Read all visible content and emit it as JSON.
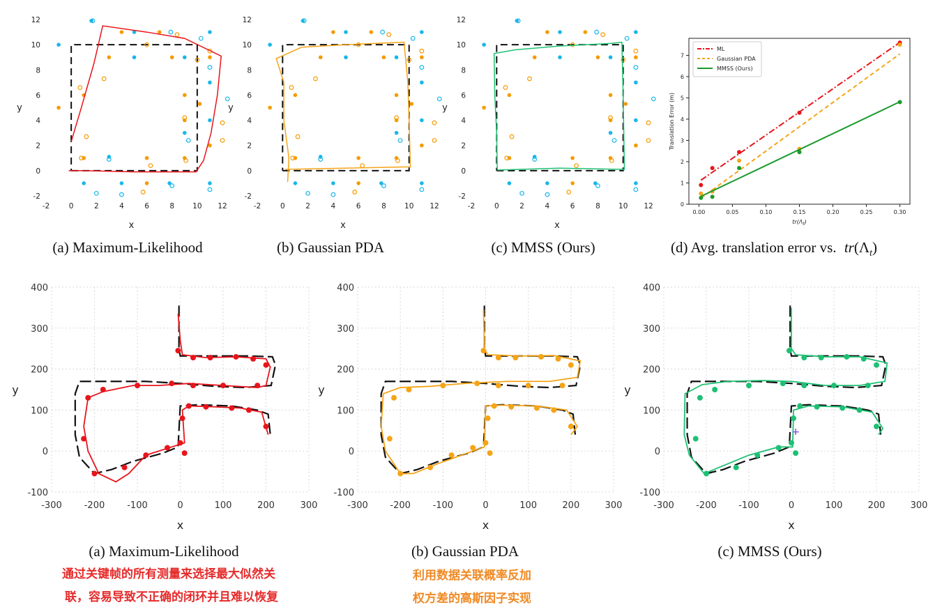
{
  "colors": {
    "ml": "#e8141b",
    "pda": "#f5a417",
    "mmss": "#1ec074",
    "mmss_line": "#1a9a2c",
    "landmark_blue": "#19b7e9",
    "landmark_orange": "#f59b00",
    "ground_truth": "#111111",
    "annotation_red": "#e62a2a",
    "annotation_orange": "#f08a24",
    "purple_marker": "#8a5cf6"
  },
  "captions": {
    "top_a": "(a) Maximum-Likelihood",
    "top_b": "(b) Gaussian PDA",
    "top_c": "(c) MMSS (Ours)",
    "top_d_prefix": "(d) Avg. translation error vs.",
    "top_d_math_tr": "tr",
    "top_d_math_open": "(Λ",
    "top_d_math_sub": "t",
    "top_d_math_close": ")",
    "bottom_a": "(a) Maximum-Likelihood",
    "bottom_b": "(b) Gaussian PDA",
    "bottom_c": "(c) MMSS (Ours)"
  },
  "annotations": {
    "red_line1": "通过关键帧的所有测量来选择最大似然关",
    "red_line2": "联，容易导致不正确的闭环并且难以恢复",
    "orange_line1": "利用数据关联概率反加",
    "orange_line2": "权方差的高斯因子实现"
  },
  "chart_data": [
    {
      "id": "top_a",
      "type": "scatter",
      "title": "",
      "xlabel": "x",
      "ylabel": "y",
      "xlim": [
        -2,
        12
      ],
      "ylim": [
        -2,
        12
      ],
      "x_ticks": [
        "-2",
        "0",
        "2",
        "4",
        "6",
        "8",
        "10",
        "12"
      ],
      "y_ticks": [
        "-2",
        "0",
        "2",
        "4",
        "6",
        "8",
        "10",
        "12"
      ],
      "ground_truth_square": [
        [
          0,
          0
        ],
        [
          10,
          0
        ],
        [
          10,
          10
        ],
        [
          0,
          10
        ],
        [
          0,
          0
        ]
      ],
      "estimate_color": "ml",
      "estimate": [
        [
          0,
          2.3
        ],
        [
          0.8,
          5
        ],
        [
          1.8,
          8.5
        ],
        [
          2.5,
          11.5
        ],
        [
          6,
          11
        ],
        [
          9,
          10.5
        ],
        [
          11.9,
          9.1
        ],
        [
          11.6,
          6
        ],
        [
          11.1,
          3
        ],
        [
          10.5,
          0.8
        ],
        [
          9.9,
          -0.1
        ],
        [
          5,
          -0.1
        ],
        [
          1,
          0
        ],
        [
          -0.2,
          0
        ]
      ]
    },
    {
      "id": "top_b",
      "type": "scatter",
      "title": "",
      "xlabel": "x",
      "ylabel": "y",
      "xlim": [
        -2,
        12
      ],
      "ylim": [
        -2,
        12
      ],
      "x_ticks": [
        "-2",
        "0",
        "2",
        "4",
        "6",
        "8",
        "10",
        "12"
      ],
      "y_ticks": [
        "-2",
        "0",
        "2",
        "4",
        "6",
        "8",
        "10",
        "12"
      ],
      "ground_truth_square": [
        [
          0,
          0
        ],
        [
          10,
          0
        ],
        [
          10,
          10
        ],
        [
          0,
          10
        ],
        [
          0,
          0
        ]
      ],
      "estimate_color": "pda",
      "estimate": [
        [
          0.4,
          -0.9
        ],
        [
          0.5,
          1
        ],
        [
          0.1,
          4
        ],
        [
          0.1,
          7
        ],
        [
          -0.5,
          8.9
        ],
        [
          1.5,
          9.8
        ],
        [
          5,
          10
        ],
        [
          9.6,
          10.2
        ],
        [
          9.9,
          7
        ],
        [
          10,
          4
        ],
        [
          10.1,
          0.3
        ],
        [
          5,
          0.2
        ],
        [
          0.2,
          0.1
        ]
      ]
    },
    {
      "id": "top_c",
      "type": "scatter",
      "title": "",
      "xlabel": "x",
      "ylabel": "y",
      "xlim": [
        -2,
        12
      ],
      "ylim": [
        -2,
        12
      ],
      "x_ticks": [
        "-2",
        "0",
        "2",
        "4",
        "6",
        "8",
        "10",
        "12"
      ],
      "y_ticks": [
        "-2",
        "0",
        "2",
        "4",
        "6",
        "8",
        "10",
        "12"
      ],
      "ground_truth_square": [
        [
          0,
          0
        ],
        [
          10,
          0
        ],
        [
          10,
          10
        ],
        [
          0,
          10
        ],
        [
          0,
          0
        ]
      ],
      "estimate_color": "mmss",
      "estimate": [
        [
          0.05,
          0.1
        ],
        [
          0,
          3
        ],
        [
          -0.15,
          6
        ],
        [
          -0.2,
          9.3
        ],
        [
          1.5,
          9.6
        ],
        [
          5,
          9.9
        ],
        [
          9,
          10.1
        ],
        [
          9.9,
          10.2
        ],
        [
          10,
          6
        ],
        [
          10.1,
          0.1
        ],
        [
          5,
          0.2
        ],
        [
          0.05,
          0.05
        ]
      ]
    },
    {
      "id": "top_d",
      "type": "line",
      "title": "",
      "xlabel": "tr(Λt)",
      "ylabel": "Translation Error (m)",
      "xlim": [
        -0.015,
        0.315
      ],
      "ylim": [
        0,
        7.8
      ],
      "x_ticks": [
        0.0,
        0.05,
        0.1,
        0.15,
        0.2,
        0.25,
        0.3
      ],
      "x_tick_labels": [
        "0.00",
        "0.05",
        "0.10",
        "0.15",
        "0.20",
        "0.25",
        "0.30"
      ],
      "y_ticks": [
        0,
        1,
        2,
        3,
        4,
        5,
        6,
        7
      ],
      "y_tick_labels": [
        "0",
        "1",
        "2",
        "3",
        "4",
        "5",
        "6",
        "7"
      ],
      "legend_position": "top-left",
      "series": [
        {
          "name": "ML",
          "color_key": "ml",
          "dash": "dashdot",
          "x": [
            0.003,
            0.02,
            0.06,
            0.15,
            0.3
          ],
          "y": [
            0.9,
            1.7,
            2.45,
            4.3,
            7.6
          ]
        },
        {
          "name": "Gaussian PDA",
          "color_key": "pda",
          "dash": "dashed",
          "x": [
            0.003,
            0.02,
            0.06,
            0.15,
            0.3
          ],
          "y": [
            0.5,
            0.6,
            2.05,
            2.6,
            7.5
          ]
        },
        {
          "name": "MMSS (Ours)",
          "color_key": "mmss_line",
          "dash": "solid",
          "x": [
            0.003,
            0.02,
            0.06,
            0.15,
            0.3
          ],
          "y": [
            0.3,
            0.35,
            1.7,
            2.45,
            4.8
          ]
        }
      ]
    },
    {
      "id": "bottom_a",
      "type": "line",
      "title": "",
      "xlabel": "x",
      "ylabel": "y",
      "xlim": [
        -300,
        300
      ],
      "ylim": [
        -100,
        400
      ],
      "x_ticks": [
        -300,
        -200,
        -100,
        0,
        100,
        200,
        300
      ],
      "y_ticks": [
        -100,
        0,
        100,
        200,
        300,
        400
      ],
      "estimate_color": "ml",
      "estimate": [
        [
          -5,
          335
        ],
        [
          0,
          270
        ],
        [
          5,
          235
        ],
        [
          60,
          228
        ],
        [
          130,
          230
        ],
        [
          200,
          225
        ],
        [
          210,
          205
        ],
        [
          200,
          160
        ],
        [
          180,
          155
        ],
        [
          100,
          160
        ],
        [
          20,
          165
        ],
        [
          -50,
          160
        ],
        [
          -110,
          160
        ],
        [
          -180,
          145
        ],
        [
          -215,
          130
        ],
        [
          -225,
          60
        ],
        [
          -215,
          0
        ],
        [
          -190,
          -55
        ],
        [
          -150,
          -75
        ],
        [
          -120,
          -55
        ],
        [
          -80,
          -10
        ],
        [
          -20,
          10
        ],
        [
          10,
          20
        ],
        [
          5,
          100
        ],
        [
          20,
          110
        ],
        [
          80,
          108
        ],
        [
          140,
          105
        ],
        [
          190,
          95
        ],
        [
          205,
          40
        ]
      ]
    },
    {
      "id": "bottom_b",
      "type": "line",
      "title": "",
      "xlabel": "x",
      "ylabel": "y",
      "xlim": [
        -300,
        300
      ],
      "ylim": [
        -100,
        400
      ],
      "estimate_color": "pda",
      "estimate": [
        [
          -5,
          345
        ],
        [
          -3,
          250
        ],
        [
          5,
          235
        ],
        [
          80,
          232
        ],
        [
          160,
          233
        ],
        [
          222,
          220
        ],
        [
          215,
          180
        ],
        [
          150,
          170
        ],
        [
          50,
          170
        ],
        [
          -50,
          165
        ],
        [
          -130,
          158
        ],
        [
          -200,
          155
        ],
        [
          -240,
          140
        ],
        [
          -245,
          60
        ],
        [
          -235,
          0
        ],
        [
          -200,
          -55
        ],
        [
          -170,
          -55
        ],
        [
          -110,
          -30
        ],
        [
          -30,
          0
        ],
        [
          -3,
          10
        ],
        [
          0,
          110
        ],
        [
          40,
          112
        ],
        [
          120,
          110
        ],
        [
          190,
          100
        ],
        [
          215,
          60
        ],
        [
          200,
          40
        ]
      ]
    },
    {
      "id": "bottom_c",
      "type": "line",
      "title": "",
      "xlabel": "x",
      "ylabel": "y",
      "xlim": [
        -300,
        300
      ],
      "ylim": [
        -100,
        400
      ],
      "estimate_color": "mmss",
      "estimate": [
        [
          0,
          350
        ],
        [
          0,
          250
        ],
        [
          10,
          235
        ],
        [
          80,
          230
        ],
        [
          160,
          230
        ],
        [
          225,
          215
        ],
        [
          220,
          170
        ],
        [
          160,
          160
        ],
        [
          80,
          160
        ],
        [
          0,
          170
        ],
        [
          -70,
          172
        ],
        [
          -150,
          170
        ],
        [
          -210,
          162
        ],
        [
          -250,
          140
        ],
        [
          -252,
          40
        ],
        [
          -240,
          -10
        ],
        [
          -205,
          -55
        ],
        [
          -170,
          -40
        ],
        [
          -100,
          -10
        ],
        [
          -30,
          10
        ],
        [
          3,
          10
        ],
        [
          5,
          100
        ],
        [
          40,
          110
        ],
        [
          120,
          108
        ],
        [
          190,
          95
        ],
        [
          215,
          55
        ],
        [
          205,
          40
        ]
      ]
    }
  ]
}
